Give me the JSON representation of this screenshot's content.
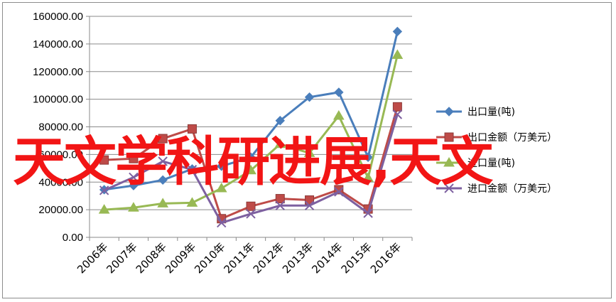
{
  "chart_data": {
    "type": "line",
    "categories": [
      "2006年",
      "2007年",
      "2008年",
      "2009年",
      "2010年",
      "2011年",
      "2012年",
      "2013年",
      "2014年",
      "2015年",
      "2016年"
    ],
    "ylim": [
      0,
      160000
    ],
    "yticks": [
      "0.00",
      "20000.00",
      "40000.00",
      "60000.00",
      "80000.00",
      "100000.00",
      "120000.00",
      "140000.00",
      "160000.00"
    ],
    "grid": true,
    "legend_position": "right",
    "series": [
      {
        "name": "出口量(吨)",
        "color": "#4a7ebb",
        "marker": "diamond",
        "values": [
          34500,
          37500,
          41500,
          49500,
          51500,
          58000,
          84500,
          101500,
          105000,
          58000,
          149000
        ]
      },
      {
        "name": "出口金额（万美元）",
        "color": "#be4b48",
        "marker": "square",
        "values": [
          56000,
          57000,
          71500,
          78500,
          13500,
          22500,
          28000,
          27000,
          34500,
          20500,
          94500
        ]
      },
      {
        "name": "进口量(吨)",
        "color": "#98b954",
        "marker": "triangle",
        "values": [
          20000,
          21500,
          24500,
          25000,
          35500,
          48500,
          67500,
          61000,
          88000,
          43000,
          132000
        ]
      },
      {
        "name": "进口金额（万美元）",
        "color": "#7d60a0",
        "marker": "x",
        "values": [
          34000,
          43500,
          55000,
          49000,
          10500,
          17000,
          23000,
          23000,
          33000,
          17500,
          89000
        ]
      }
    ]
  },
  "watermark": "天文学科研进展,天文"
}
